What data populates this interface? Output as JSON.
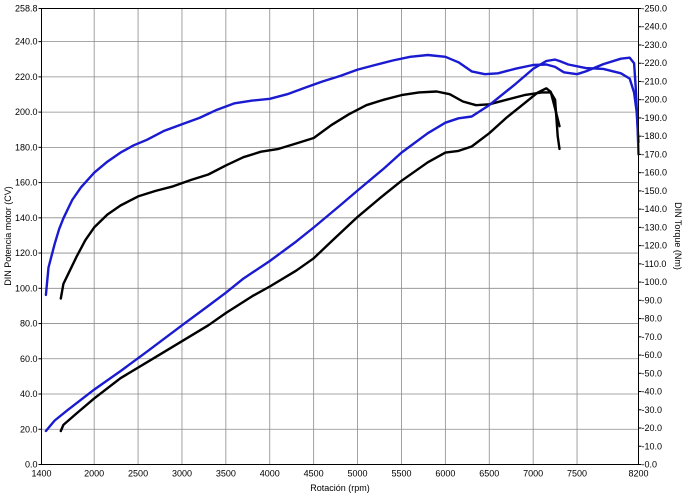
{
  "chart_data": {
    "type": "line",
    "xlabel": "Rotación (rpm)",
    "ylabel_left": "DIN Potencia motor (CV)",
    "ylabel_right": "DIN Torque (Nm)",
    "xlim": [
      1400,
      8200
    ],
    "ylim_left": [
      0,
      258.8
    ],
    "ylim_right": [
      0,
      250
    ],
    "x_ticks": [
      1400,
      2000,
      2500,
      3000,
      3500,
      4000,
      4500,
      5000,
      5500,
      6000,
      6500,
      7000,
      7500,
      8200
    ],
    "y_left_ticks": [
      {
        "value": 0,
        "label": "0.0"
      },
      {
        "value": 20,
        "label": "20.0"
      },
      {
        "value": 40,
        "label": "40.0"
      },
      {
        "value": 60,
        "label": "60.0"
      },
      {
        "value": 80,
        "label": "80.0"
      },
      {
        "value": 100,
        "label": "100.0"
      },
      {
        "value": 120,
        "label": "120.0"
      },
      {
        "value": 140,
        "label": "140.0"
      },
      {
        "value": 160,
        "label": "160.0"
      },
      {
        "value": 180,
        "label": "180.0"
      },
      {
        "value": 200,
        "label": "200.0"
      },
      {
        "value": 220,
        "label": "220.0"
      },
      {
        "value": 240,
        "label": "240.0"
      },
      {
        "value": 258.8,
        "label": "258.8"
      }
    ],
    "y_right_ticks": [
      {
        "value": 0,
        "label": "-0.0"
      },
      {
        "value": 10,
        "label": "-10.0"
      },
      {
        "value": 20,
        "label": "-20.0"
      },
      {
        "value": 30,
        "label": "-30.0"
      },
      {
        "value": 40,
        "label": "-40.0"
      },
      {
        "value": 50,
        "label": "-50.0"
      },
      {
        "value": 60,
        "label": "-60.0"
      },
      {
        "value": 70,
        "label": "-70.0"
      },
      {
        "value": 80,
        "label": "-80.0"
      },
      {
        "value": 90,
        "label": "-90.0"
      },
      {
        "value": 100,
        "label": "-100.0"
      },
      {
        "value": 110,
        "label": "-110.0"
      },
      {
        "value": 120,
        "label": "-120.0"
      },
      {
        "value": 130,
        "label": "-130.0"
      },
      {
        "value": 140,
        "label": "-140.0"
      },
      {
        "value": 150,
        "label": "-150.0"
      },
      {
        "value": 160,
        "label": "-160.0"
      },
      {
        "value": 170,
        "label": "-170.0"
      },
      {
        "value": 180,
        "label": "-180.0"
      },
      {
        "value": 190,
        "label": "-190.0"
      },
      {
        "value": 200,
        "label": "-200.0"
      },
      {
        "value": 210,
        "label": "-210.0"
      },
      {
        "value": 220,
        "label": "-220.0"
      },
      {
        "value": 230,
        "label": "-230.0"
      },
      {
        "value": 240,
        "label": "-240.0"
      },
      {
        "value": 250,
        "label": "-250.0"
      }
    ],
    "grid": true,
    "series": [
      {
        "axis": "right",
        "color": "#1a1ad0",
        "points": [
          [
            1450,
            93
          ],
          [
            1480,
            108
          ],
          [
            1550,
            121
          ],
          [
            1600,
            129
          ],
          [
            1650,
            135
          ],
          [
            1750,
            145
          ],
          [
            1850,
            152
          ],
          [
            2000,
            160
          ],
          [
            2150,
            166
          ],
          [
            2300,
            171
          ],
          [
            2450,
            175
          ],
          [
            2600,
            178
          ],
          [
            2800,
            183
          ],
          [
            3000,
            186.5
          ],
          [
            3200,
            190
          ],
          [
            3400,
            194.5
          ],
          [
            3600,
            198
          ],
          [
            3800,
            199.5
          ],
          [
            4000,
            200.5
          ],
          [
            4200,
            203
          ],
          [
            4400,
            206.5
          ],
          [
            4600,
            210
          ],
          [
            4800,
            213
          ],
          [
            5000,
            216.5
          ],
          [
            5200,
            219
          ],
          [
            5400,
            221.5
          ],
          [
            5600,
            223.5
          ],
          [
            5800,
            224.5
          ],
          [
            6000,
            223.5
          ],
          [
            6150,
            220.5
          ],
          [
            6300,
            215.5
          ],
          [
            6450,
            214
          ],
          [
            6600,
            214.5
          ],
          [
            6800,
            217
          ],
          [
            7000,
            219
          ],
          [
            7150,
            219.3
          ],
          [
            7250,
            218
          ],
          [
            7350,
            215
          ],
          [
            7500,
            214
          ],
          [
            7600,
            215.5
          ],
          [
            7800,
            219.5
          ],
          [
            8000,
            222.5
          ],
          [
            8100,
            223
          ],
          [
            8150,
            220
          ],
          [
            8170,
            205
          ],
          [
            8190,
            185
          ],
          [
            8200,
            170
          ]
        ]
      },
      {
        "axis": "right",
        "color": "#000000",
        "points": [
          [
            1620,
            91
          ],
          [
            1650,
            99
          ],
          [
            1700,
            104
          ],
          [
            1800,
            114
          ],
          [
            1900,
            123
          ],
          [
            2000,
            130
          ],
          [
            2150,
            137
          ],
          [
            2300,
            142
          ],
          [
            2500,
            147
          ],
          [
            2700,
            150
          ],
          [
            2900,
            152.5
          ],
          [
            3100,
            156
          ],
          [
            3300,
            159
          ],
          [
            3500,
            164
          ],
          [
            3700,
            168.5
          ],
          [
            3900,
            171.5
          ],
          [
            4100,
            173
          ],
          [
            4300,
            176
          ],
          [
            4500,
            179
          ],
          [
            4700,
            186
          ],
          [
            4900,
            192
          ],
          [
            5100,
            197
          ],
          [
            5300,
            200
          ],
          [
            5500,
            202.5
          ],
          [
            5700,
            204
          ],
          [
            5900,
            204.5
          ],
          [
            6050,
            203
          ],
          [
            6200,
            199
          ],
          [
            6350,
            197
          ],
          [
            6500,
            197.5
          ],
          [
            6700,
            200
          ],
          [
            6900,
            202.5
          ],
          [
            7100,
            204
          ],
          [
            7200,
            204
          ],
          [
            7250,
            200
          ],
          [
            7280,
            180
          ],
          [
            7300,
            173
          ]
        ]
      },
      {
        "axis": "left",
        "color": "#1a1ad0",
        "points": [
          [
            1450,
            19
          ],
          [
            1550,
            25
          ],
          [
            1700,
            31
          ],
          [
            2000,
            42.5
          ],
          [
            2300,
            53
          ],
          [
            2600,
            64
          ],
          [
            3000,
            79
          ],
          [
            3300,
            90
          ],
          [
            3500,
            97.5
          ],
          [
            3700,
            105.5
          ],
          [
            4000,
            115.5
          ],
          [
            4300,
            126.5
          ],
          [
            4500,
            134.5
          ],
          [
            4800,
            147
          ],
          [
            5000,
            155.5
          ],
          [
            5300,
            168
          ],
          [
            5500,
            177
          ],
          [
            5800,
            188
          ],
          [
            6000,
            194
          ],
          [
            6150,
            196.5
          ],
          [
            6300,
            197.5
          ],
          [
            6500,
            204
          ],
          [
            6800,
            216
          ],
          [
            7000,
            224.5
          ],
          [
            7150,
            229
          ],
          [
            7250,
            229.8
          ],
          [
            7300,
            229
          ],
          [
            7400,
            227
          ],
          [
            7600,
            225
          ],
          [
            7800,
            224.5
          ],
          [
            8000,
            222
          ],
          [
            8100,
            219
          ],
          [
            8150,
            211
          ],
          [
            8180,
            200
          ],
          [
            8200,
            183
          ]
        ]
      },
      {
        "axis": "left",
        "color": "#000000",
        "points": [
          [
            1620,
            19
          ],
          [
            1650,
            22.5
          ],
          [
            1800,
            29
          ],
          [
            2000,
            37.5
          ],
          [
            2300,
            49
          ],
          [
            2600,
            58
          ],
          [
            3000,
            70
          ],
          [
            3300,
            79
          ],
          [
            3500,
            86
          ],
          [
            3800,
            95.5
          ],
          [
            4000,
            101
          ],
          [
            4300,
            110
          ],
          [
            4500,
            117
          ],
          [
            4700,
            126.5
          ],
          [
            5000,
            140.5
          ],
          [
            5300,
            153
          ],
          [
            5500,
            161
          ],
          [
            5800,
            171.5
          ],
          [
            6000,
            177
          ],
          [
            6150,
            178
          ],
          [
            6300,
            180.5
          ],
          [
            6500,
            188
          ],
          [
            6700,
            197
          ],
          [
            6900,
            205
          ],
          [
            7050,
            211
          ],
          [
            7150,
            213.5
          ],
          [
            7200,
            211.5
          ],
          [
            7250,
            202
          ],
          [
            7300,
            192
          ]
        ]
      }
    ]
  }
}
